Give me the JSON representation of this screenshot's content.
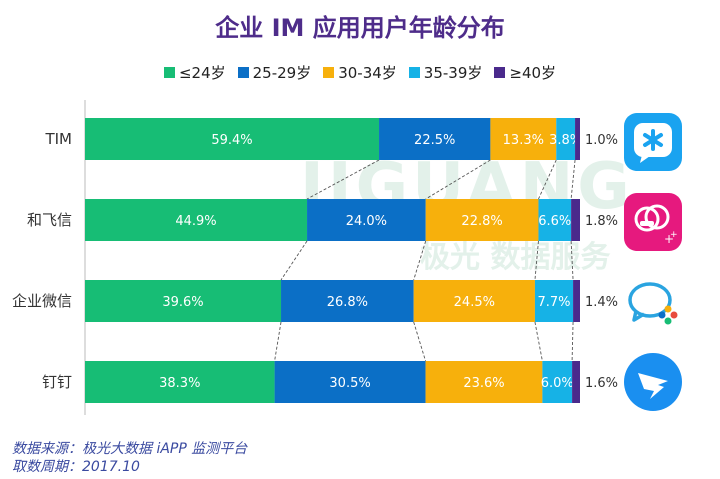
{
  "chart_data": {
    "type": "bar",
    "orientation": "horizontal",
    "stacked": true,
    "title": "企业 IM 应用用户年龄分布",
    "categories": [
      "TIM",
      "和飞信",
      "企业微信",
      "钉钉"
    ],
    "series": [
      {
        "name": "≤24岁",
        "color": "#17bd75",
        "values": [
          59.4,
          44.9,
          39.6,
          38.3
        ],
        "labels": [
          "59.4%",
          "44.9%",
          "39.6%",
          "38.3%"
        ]
      },
      {
        "name": "25-29岁",
        "color": "#0b6fc6",
        "values": [
          22.5,
          24.0,
          26.8,
          30.5
        ],
        "labels": [
          "22.5%",
          "24.0%",
          "26.8%",
          "30.5%"
        ]
      },
      {
        "name": "30-34岁",
        "color": "#f7b00c",
        "values": [
          13.3,
          22.8,
          24.5,
          23.6
        ],
        "labels": [
          "13.3%",
          "22.8%",
          "24.5%",
          "23.6%"
        ]
      },
      {
        "name": "35-39岁",
        "color": "#16b2e6",
        "values": [
          3.8,
          6.6,
          7.7,
          6.0
        ],
        "labels": [
          "3.8%",
          "6.6%",
          "7.7%",
          "6.0%"
        ]
      },
      {
        "name": "≥40岁",
        "color": "#4a2a8c",
        "values": [
          1.0,
          1.8,
          1.4,
          1.6
        ],
        "labels": [
          "1.0%",
          "1.8%",
          "1.4%",
          "1.6%"
        ]
      }
    ],
    "xlim": [
      0,
      100
    ],
    "legend_position": "top",
    "connector_lines": true
  },
  "watermark": {
    "brand": "JIGUANG",
    "tagline": "极光 数据服务"
  },
  "source": {
    "line1": "数据来源：极光大数据 iAPP 监测平台",
    "line2": "取数周期：2017.10"
  },
  "icons": [
    "tim-icon",
    "hefeixin-icon",
    "wework-icon",
    "dingtalk-icon"
  ],
  "colors": {
    "title": "#4e2c8a",
    "axis": "#555555",
    "source": "#3a4aa0"
  }
}
